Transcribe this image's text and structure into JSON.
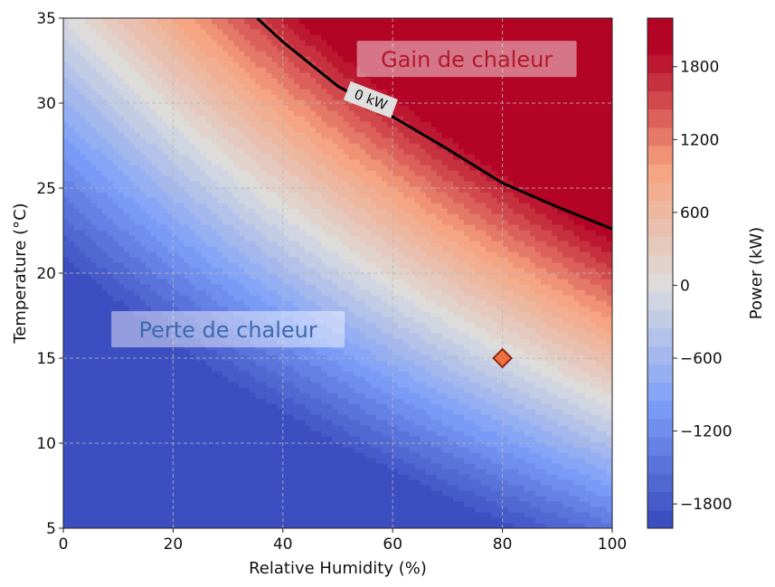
{
  "chart_data": {
    "type": "heatmap",
    "subtype": "filled-contour",
    "title": "",
    "xlabel": "Relative Humidity (%)",
    "ylabel": "Temperature (°C)",
    "xlim": [
      0,
      100
    ],
    "ylim": [
      5,
      35
    ],
    "xticks": [
      0,
      20,
      40,
      60,
      80,
      100
    ],
    "yticks": [
      5,
      10,
      15,
      20,
      25,
      30,
      35
    ],
    "grid": true,
    "colormap": "coolwarm",
    "colorbar": {
      "label": "Power (kW)",
      "range": [
        -2000,
        2200
      ],
      "ticks": [
        -1800,
        -1200,
        -600,
        0,
        600,
        1200,
        1800
      ],
      "tick_labels": [
        "−1800",
        "−1200",
        "−600",
        "0",
        "600",
        "1200",
        "1800"
      ],
      "levels": [
        -2000,
        -1850,
        -1700,
        -1550,
        -1400,
        -1250,
        -1100,
        -950,
        -800,
        -650,
        -500,
        -350,
        -200,
        -50,
        100,
        250,
        400,
        550,
        700,
        850,
        1000,
        1150,
        1300,
        1450,
        1600,
        1750,
        1900,
        2050,
        2200
      ]
    },
    "zero_contour": {
      "label": "0 kW",
      "points": [
        [
          35.3,
          35
        ],
        [
          40,
          33.6
        ],
        [
          50,
          31
        ],
        [
          60,
          29.2
        ],
        [
          70,
          27.3
        ],
        [
          80,
          25.3
        ],
        [
          90,
          23.9
        ],
        [
          100,
          22.6
        ]
      ]
    },
    "annotations": [
      {
        "text": "Gain de chaleur",
        "x": 73.5,
        "y": 32.6,
        "color": "#b2182b"
      },
      {
        "text": "Perte de chaleur",
        "x": 30,
        "y": 16.7,
        "color": "#3d6aad"
      }
    ],
    "markers": [
      {
        "x": 80,
        "y": 15,
        "shape": "diamond",
        "color": "#ee7040"
      }
    ]
  }
}
